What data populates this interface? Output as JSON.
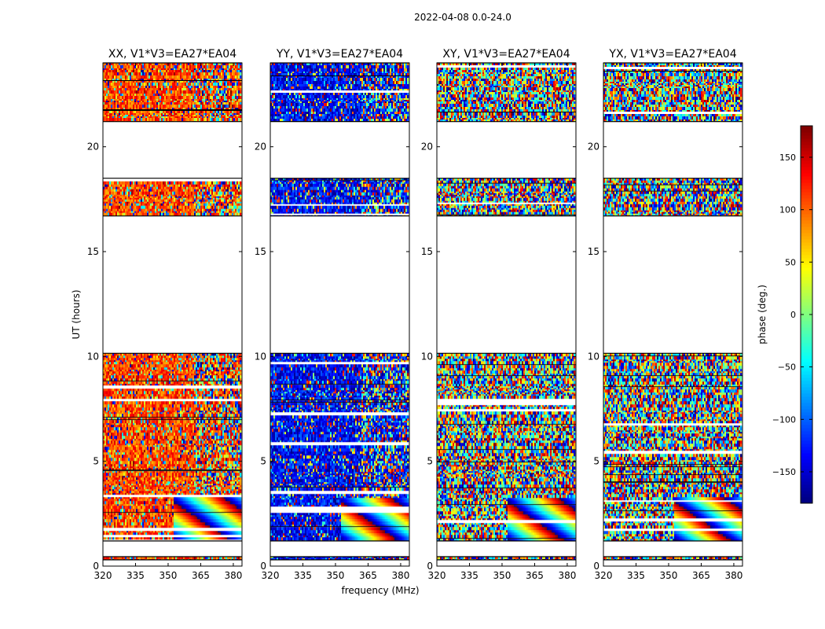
{
  "figure": {
    "suptitle": "2022-04-08 0.0-24.0"
  },
  "chart_data": {
    "type": "heatmap",
    "xlabel": "frequency (MHz)",
    "ylabel": "UT (hours)",
    "xlim": [
      320,
      384
    ],
    "ylim": [
      0,
      24
    ],
    "x_ticks": [
      320,
      335,
      350,
      365,
      380
    ],
    "y_ticks": [
      0,
      5,
      10,
      15,
      20
    ],
    "panels": [
      {
        "title": "XX, V1*V3=EA27*EA04",
        "pol": "XX",
        "base_phase": 110
      },
      {
        "title": "YY, V1*V3=EA27*EA04",
        "pol": "YY",
        "base_phase": -135
      },
      {
        "title": "XY, V1*V3=EA27*EA04",
        "pol": "XY",
        "base_phase": null
      },
      {
        "title": "YX, V1*V3=EA27*EA04",
        "pol": "YX",
        "base_phase": null
      }
    ],
    "data_segments_ut": [
      [
        0.3,
        0.45
      ],
      [
        1.2,
        10.15
      ],
      [
        16.7,
        18.5
      ],
      [
        21.2,
        24.0
      ]
    ],
    "colorbar": {
      "label": "phase (deg.)",
      "range": [
        -180,
        180
      ],
      "ticks": [
        -150,
        -100,
        -50,
        0,
        50,
        100,
        150
      ],
      "tick_labels": [
        "−150",
        "−100",
        "−50",
        "0",
        "50",
        "100",
        "150"
      ],
      "colormap": "jet"
    }
  }
}
